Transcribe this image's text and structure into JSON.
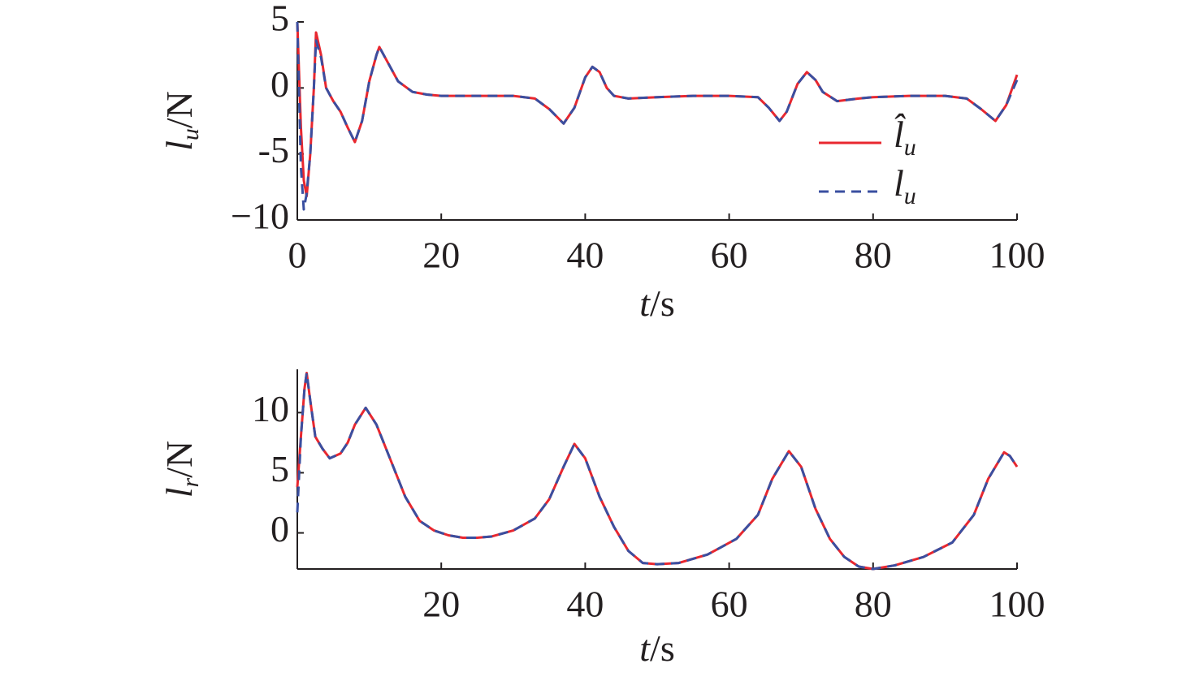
{
  "chart_data": [
    {
      "type": "line",
      "ylabel": [
        "l",
        "u",
        "/N"
      ],
      "xlabel": [
        "t",
        "/s"
      ],
      "xlim": [
        0,
        100
      ],
      "xticks": [
        0,
        20,
        40,
        60,
        80,
        100
      ],
      "ylim": [
        -10,
        5
      ],
      "yticks": [
        5,
        0,
        -5,
        {
          "value": -10,
          "label": "−10"
        }
      ],
      "legend": "right",
      "x": [
        0,
        0.5,
        0.9,
        1.3,
        1.8,
        2.3,
        2.6,
        3.3,
        4,
        5,
        6,
        7,
        8,
        9,
        10,
        11,
        11.4,
        12.5,
        14,
        16,
        18,
        20,
        25,
        30,
        33,
        35,
        37,
        38.5,
        40,
        41,
        42,
        43,
        44,
        46,
        50,
        55,
        60,
        64,
        65.5,
        67,
        68,
        69.5,
        70.8,
        72,
        73,
        75,
        78,
        80,
        85,
        90,
        93,
        95,
        97,
        98.5,
        100
      ],
      "series": [
        {
          "name": [
            "l̂",
            "u"
          ],
          "color": "#e8272f",
          "dash": false,
          "values": [
            5,
            -3,
            -7,
            -8.2,
            -5,
            0,
            4.2,
            2.5,
            0,
            -1,
            -1.8,
            -3,
            -4.1,
            -2.5,
            0.5,
            2.5,
            3.1,
            2,
            0.5,
            -0.3,
            -0.5,
            -0.6,
            -0.6,
            -0.6,
            -0.8,
            -1.6,
            -2.7,
            -1.5,
            0.8,
            1.6,
            1.2,
            0,
            -0.6,
            -0.8,
            -0.7,
            -0.6,
            -0.6,
            -0.7,
            -1.5,
            -2.5,
            -1.8,
            0.3,
            1.2,
            0.6,
            -0.3,
            -1,
            -0.8,
            -0.7,
            -0.6,
            -0.6,
            -0.8,
            -1.6,
            -2.5,
            -1.3,
            1
          ]
        },
        {
          "name": [
            "l",
            "u"
          ],
          "color": "#3a4fa0",
          "dash": true,
          "values": [
            5,
            -6,
            -9.2,
            -8,
            -5,
            0,
            3.6,
            2.3,
            0,
            -1,
            -1.8,
            -3,
            -4.1,
            -2.5,
            0.5,
            2.5,
            3.1,
            2,
            0.5,
            -0.3,
            -0.5,
            -0.6,
            -0.6,
            -0.6,
            -0.8,
            -1.6,
            -2.7,
            -1.5,
            0.8,
            1.6,
            1.2,
            0,
            -0.6,
            -0.8,
            -0.7,
            -0.6,
            -0.6,
            -0.7,
            -1.5,
            -2.5,
            -1.8,
            0.3,
            1.2,
            0.6,
            -0.3,
            -1,
            -0.8,
            -0.7,
            -0.6,
            -0.6,
            -0.8,
            -1.6,
            -2.5,
            -1.3,
            0.6
          ]
        }
      ]
    },
    {
      "type": "line",
      "ylabel": [
        "l",
        "r",
        "/N"
      ],
      "xlabel": [
        "t",
        "/s"
      ],
      "xlim": [
        0,
        100
      ],
      "xticks": [
        20,
        40,
        60,
        80,
        100
      ],
      "ylim": [
        -3,
        13.6
      ],
      "yticks": [
        10,
        5,
        0
      ],
      "x": [
        0,
        0.5,
        1,
        1.3,
        1.8,
        2.5,
        3.5,
        4.5,
        6,
        7,
        8,
        9.5,
        11,
        13,
        15,
        17,
        19,
        21,
        23,
        25,
        27,
        30,
        33,
        35,
        37,
        38.5,
        40,
        42,
        44,
        46,
        48,
        50,
        53,
        57,
        61,
        64,
        66,
        68.3,
        70,
        72,
        74,
        76,
        78,
        80,
        83,
        87,
        91,
        94,
        96,
        98.2,
        99,
        100
      ],
      "series": [
        {
          "color": "#e8272f",
          "dash": false,
          "values": [
            3.8,
            8,
            12,
            13.3,
            11,
            8,
            7,
            6.2,
            6.6,
            7.5,
            9,
            10.4,
            9,
            6,
            3,
            1,
            0.2,
            -0.2,
            -0.4,
            -0.4,
            -0.3,
            0.2,
            1.2,
            2.8,
            5.5,
            7.4,
            6.2,
            3,
            0.5,
            -1.5,
            -2.5,
            -2.6,
            -2.5,
            -1.8,
            -0.5,
            1.5,
            4.5,
            6.8,
            5.5,
            2,
            -0.5,
            -2,
            -2.8,
            -3,
            -2.7,
            -2,
            -0.8,
            1.5,
            4.5,
            6.7,
            6.4,
            5.5
          ]
        },
        {
          "color": "#3a4fa0",
          "dash": true,
          "values": [
            1.7,
            8,
            12,
            13.3,
            11,
            8,
            7,
            6.2,
            6.6,
            7.5,
            9,
            10.4,
            9,
            6,
            3,
            1,
            0.2,
            -0.2,
            -0.4,
            -0.4,
            -0.3,
            0.2,
            1.2,
            2.8,
            5.5,
            7.4,
            6.2,
            3,
            0.5,
            -1.5,
            -2.5,
            -2.6,
            -2.5,
            -1.8,
            -0.5,
            1.5,
            4.5,
            6.8,
            5.5,
            2,
            -0.5,
            -2,
            -2.8,
            -3,
            -2.7,
            -2,
            -0.8,
            1.5,
            4.5,
            6.7,
            6.4,
            5.5
          ]
        }
      ]
    }
  ]
}
